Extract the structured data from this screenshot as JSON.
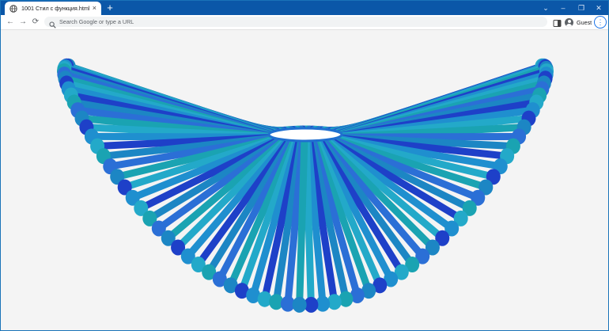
{
  "browser": {
    "tab": {
      "title": "1001 Стил с функция.html",
      "close_glyph": "×",
      "icon": "globe-icon"
    },
    "new_tab_glyph": "+",
    "window_controls": {
      "chevron": "⌄",
      "minimize": "–",
      "restore": "❐",
      "close": "✕"
    },
    "toolbar": {
      "back_glyph": "←",
      "forward_glyph": "→",
      "reload_glyph": "⟳",
      "omnibox_placeholder": "Search Google or type a URL",
      "profile_label": "Guest",
      "menu_glyph": "⋮"
    },
    "colors": {
      "titlebar": "#0b57a8",
      "accent": "#1a73e8"
    }
  },
  "scene": {
    "description_colors": [
      "#1e40c8",
      "#1f8fcf",
      "#23a9c9",
      "#1aa3b2",
      "#2b6fd6",
      "#1c86c4"
    ],
    "background": "#f4f4f4"
  }
}
